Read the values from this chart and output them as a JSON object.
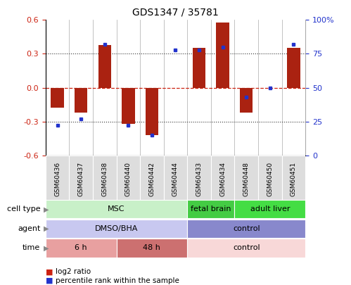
{
  "title": "GDS1347 / 35781",
  "samples": [
    "GSM60436",
    "GSM60437",
    "GSM60438",
    "GSM60440",
    "GSM60442",
    "GSM60444",
    "GSM60433",
    "GSM60434",
    "GSM60448",
    "GSM60450",
    "GSM60451"
  ],
  "log2_ratio": [
    -0.18,
    -0.22,
    0.38,
    -0.32,
    -0.42,
    0.0,
    0.35,
    0.58,
    -0.22,
    0.0,
    0.35
  ],
  "percentile_rank": [
    22,
    27,
    82,
    22,
    15,
    78,
    78,
    80,
    43,
    50,
    82
  ],
  "ylim": [
    -0.6,
    0.6
  ],
  "yticks_left": [
    -0.6,
    -0.3,
    0.0,
    0.3,
    0.6
  ],
  "yticks_right": [
    0,
    25,
    50,
    75,
    100
  ],
  "bar_color": "#aa2211",
  "dot_color": "#2233cc",
  "dotted_line_color": "#333333",
  "dashed_line_color": "#cc2211",
  "bg_color": "#ffffff",
  "xtick_bg": "#dddddd",
  "cell_type_groups": [
    {
      "label": "MSC",
      "start": 0,
      "end": 5,
      "color": "#c8f0c8"
    },
    {
      "label": "fetal brain",
      "start": 6,
      "end": 7,
      "color": "#44cc44"
    },
    {
      "label": "adult liver",
      "start": 8,
      "end": 10,
      "color": "#44dd44"
    }
  ],
  "agent_groups": [
    {
      "label": "DMSO/BHA",
      "start": 0,
      "end": 5,
      "color": "#c8c8f0"
    },
    {
      "label": "control",
      "start": 6,
      "end": 10,
      "color": "#8888cc"
    }
  ],
  "time_groups": [
    {
      "label": "6 h",
      "start": 0,
      "end": 2,
      "color": "#e8a0a0"
    },
    {
      "label": "48 h",
      "start": 3,
      "end": 5,
      "color": "#cc7070"
    },
    {
      "label": "control",
      "start": 6,
      "end": 10,
      "color": "#f8d8d8"
    }
  ],
  "row_labels": [
    "cell type",
    "agent",
    "time"
  ],
  "legend_bar_color": "#cc2211",
  "legend_dot_color": "#2233cc",
  "legend_log2": "log2 ratio",
  "legend_pct": "percentile rank within the sample",
  "bar_width": 0.55
}
